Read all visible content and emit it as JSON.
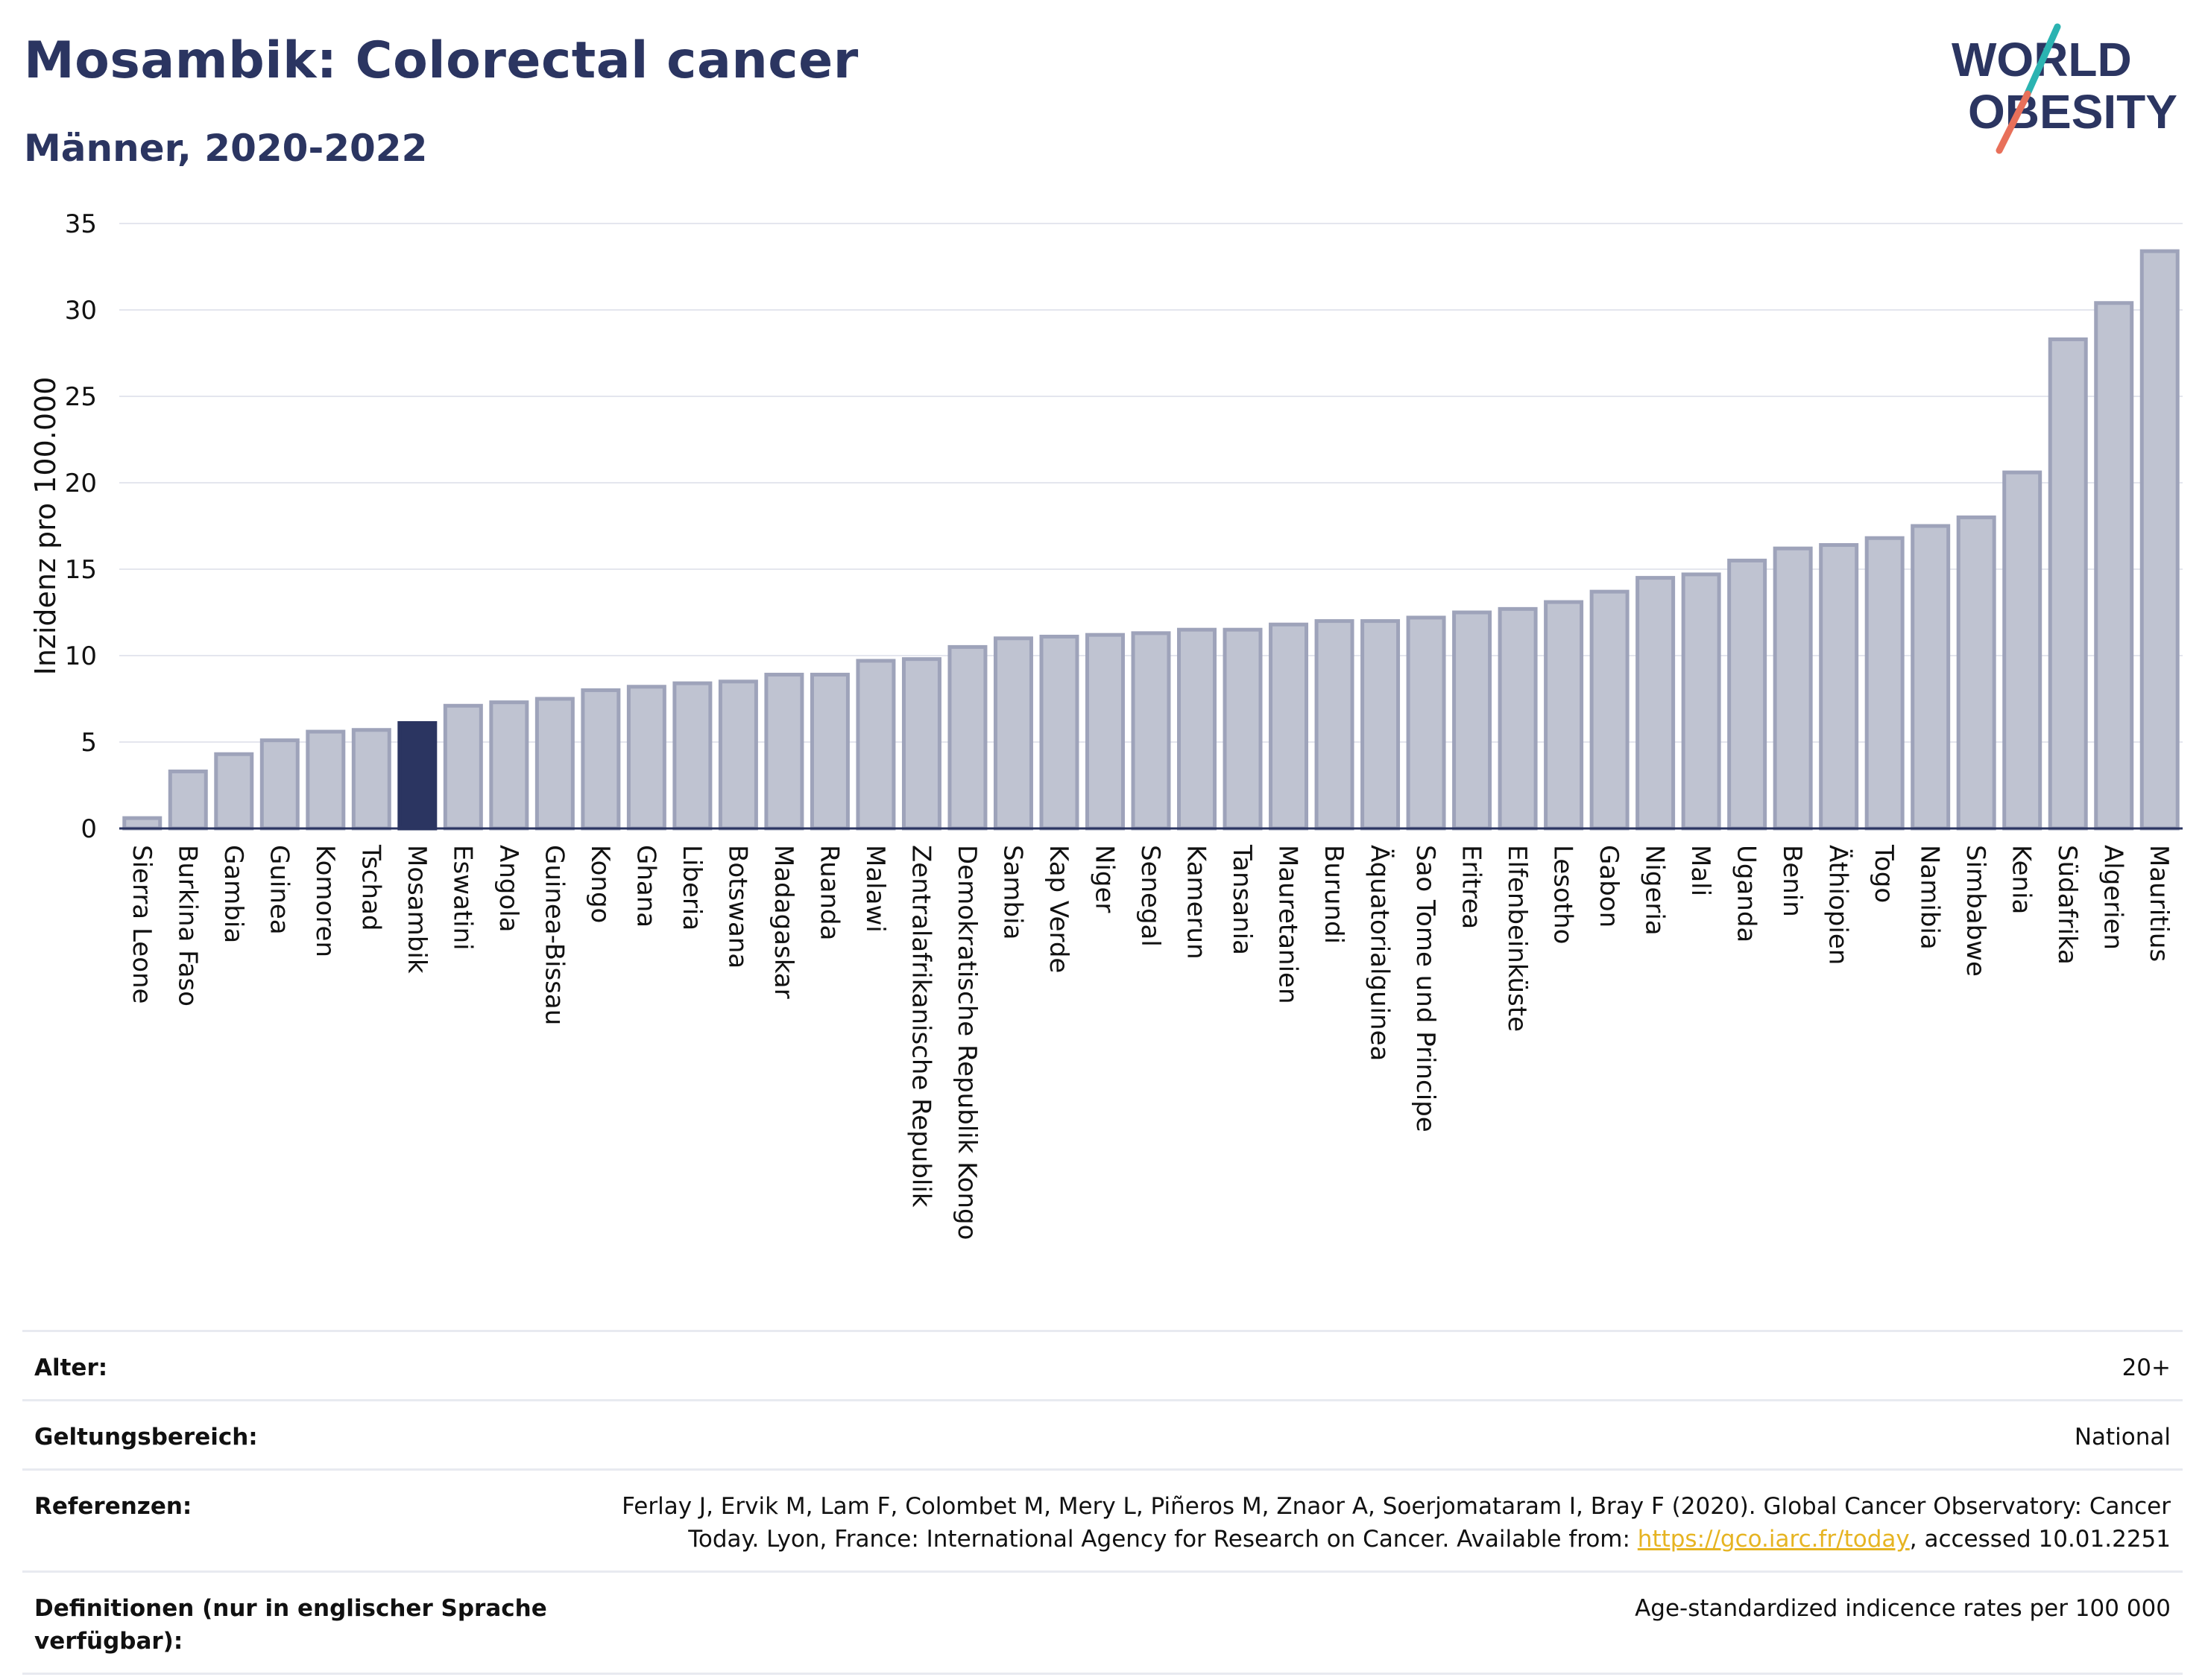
{
  "header": {
    "title": "Mosambik: Colorectal cancer",
    "subtitle": "Männer, 2020-2022"
  },
  "logo": {
    "line1": "WORLD",
    "line2": "OBESITY",
    "accent_teal": "#2bb3b1",
    "accent_coral": "#e8705a",
    "text_color": "#2b3561"
  },
  "chart_data": {
    "type": "bar",
    "ylabel": "Inzidenz pro 100.000",
    "ylim": [
      0,
      35
    ],
    "yticks": [
      0,
      5,
      10,
      15,
      20,
      25,
      30,
      35
    ],
    "grid": true,
    "highlight": "Mosambik",
    "highlight_color": "#2b3561",
    "bar_color": "#bfc3d1",
    "bar_edge_color": "#9ea3ba",
    "categories": [
      "Sierra Leone",
      "Burkina Faso",
      "Gambia",
      "Guinea",
      "Komoren",
      "Tschad",
      "Mosambik",
      "Eswatini",
      "Angola",
      "Guinea-Bissau",
      "Kongo",
      "Ghana",
      "Liberia",
      "Botswana",
      "Madagaskar",
      "Ruanda",
      "Malawi",
      "Zentralafrikanische Republik",
      "Demokratische Republik Kongo",
      "Sambia",
      "Kap Verde",
      "Niger",
      "Senegal",
      "Kamerun",
      "Tansania",
      "Mauretanien",
      "Burundi",
      "Äquatorialguinea",
      "Sao Tome und Principe",
      "Eritrea",
      "Elfenbeinküste",
      "Lesotho",
      "Gabon",
      "Nigeria",
      "Mali",
      "Uganda",
      "Benin",
      "Äthiopien",
      "Togo",
      "Namibia",
      "Simbabwe",
      "Kenia",
      "Südafrika",
      "Algerien",
      "Mauritius"
    ],
    "values": [
      0.6,
      3.3,
      4.3,
      5.1,
      5.6,
      5.7,
      6.1,
      7.1,
      7.3,
      7.5,
      8.0,
      8.2,
      8.4,
      8.5,
      8.9,
      8.9,
      9.7,
      9.8,
      10.5,
      11.0,
      11.1,
      11.2,
      11.3,
      11.5,
      11.5,
      11.8,
      12.0,
      12.0,
      12.2,
      12.5,
      12.7,
      13.1,
      13.7,
      14.5,
      14.7,
      15.5,
      16.2,
      16.4,
      16.8,
      17.5,
      18.0,
      20.6,
      28.3,
      30.4,
      33.4
    ]
  },
  "info": {
    "rows": [
      {
        "label": "Alter:",
        "value": "20+"
      },
      {
        "label": "Geltungsbereich:",
        "value": "National"
      },
      {
        "label": "Referenzen:",
        "value_line1": "Ferlay J, Ervik M, Lam F, Colombet M, Mery L, Piñeros M, Znaor A, Soerjomataram I, Bray F (2020). Global Cancer Observatory: Cancer",
        "value_line2_pre": "Today. Lyon, France: International Agency for Research on Cancer. Available from: ",
        "link": "https://gco.iarc.fr/today",
        "value_line2_post": ", accessed 10.01.2251"
      },
      {
        "label": "Definitionen (nur in englischer Sprache verfügbar):",
        "value": "Age-standardized indicence rates per 100 000"
      }
    ]
  }
}
